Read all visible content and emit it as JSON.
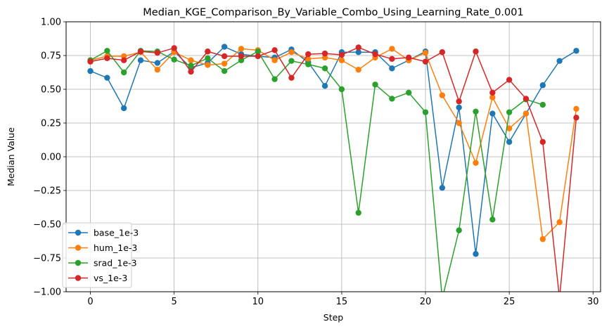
{
  "chart_data": {
    "type": "line",
    "title": "Median_KGE_Comparison_By_Variable_Combo_Using_Learning_Rate_0.001",
    "xlabel": "Step",
    "ylabel": "Median Value",
    "xlim": [
      -1.45,
      30.45
    ],
    "ylim": [
      -1.0,
      1.0
    ],
    "xticks": [
      0,
      5,
      10,
      15,
      20,
      25,
      30
    ],
    "yticks": [
      -1.0,
      -0.75,
      -0.5,
      -0.25,
      0.0,
      0.25,
      0.5,
      0.75,
      1.0
    ],
    "xtick_labels": [
      "0",
      "5",
      "10",
      "15",
      "20",
      "25",
      "30"
    ],
    "ytick_labels": [
      "−1.00",
      "−0.75",
      "−0.50",
      "−0.25",
      "0.00",
      "0.25",
      "0.50",
      "0.75",
      "1.00"
    ],
    "grid": true,
    "legend_position": "lower-left",
    "series": [
      {
        "name": "base_1e-3",
        "color": "#1f77b4",
        "x": [
          0,
          1,
          2,
          3,
          4,
          5,
          6,
          7,
          8,
          9,
          10,
          11,
          12,
          13,
          14,
          15,
          16,
          17,
          18,
          19,
          20,
          21,
          22,
          23,
          24,
          25,
          26,
          27,
          28,
          29
        ],
        "values": [
          0.635,
          0.585,
          0.36,
          0.715,
          0.695,
          0.78,
          0.66,
          0.695,
          0.815,
          0.76,
          0.745,
          0.735,
          0.795,
          0.7,
          0.525,
          0.775,
          0.775,
          0.775,
          0.655,
          0.715,
          0.78,
          -0.23,
          0.365,
          -0.72,
          0.32,
          0.11,
          0.32,
          0.53,
          0.71,
          0.785
        ]
      },
      {
        "name": "hum_1e-3",
        "color": "#ff7f0e",
        "x": [
          0,
          1,
          2,
          3,
          4,
          5,
          6,
          7,
          8,
          9,
          10,
          11,
          12,
          13,
          14,
          15,
          16,
          17,
          18,
          19,
          20,
          21,
          22,
          23,
          24,
          25,
          26,
          27,
          28,
          29
        ],
        "values": [
          0.715,
          0.745,
          0.745,
          0.775,
          0.645,
          0.775,
          0.715,
          0.68,
          0.69,
          0.8,
          0.79,
          0.715,
          0.775,
          0.725,
          0.735,
          0.715,
          0.645,
          0.735,
          0.8,
          0.715,
          0.77,
          0.455,
          0.25,
          -0.045,
          0.44,
          0.21,
          0.32,
          -0.61,
          -0.485,
          0.355
        ]
      },
      {
        "name": "srad_1e-3",
        "color": "#2ca02c",
        "x": [
          0,
          1,
          2,
          3,
          4,
          5,
          6,
          7,
          8,
          9,
          10,
          11,
          12,
          13,
          14,
          15,
          16,
          17,
          18,
          19,
          20,
          21,
          22,
          23,
          24,
          25,
          26,
          27
        ],
        "values": [
          0.715,
          0.785,
          0.625,
          0.785,
          0.78,
          0.72,
          0.675,
          0.73,
          0.635,
          0.715,
          0.78,
          0.575,
          0.71,
          0.685,
          0.655,
          0.5,
          -0.415,
          0.535,
          0.43,
          0.475,
          0.33,
          -1.05,
          -0.545,
          0.335,
          -0.465,
          0.33,
          0.425,
          0.385
        ]
      },
      {
        "name": "vs_1e-3",
        "color": "#d62728",
        "x": [
          0,
          1,
          2,
          3,
          4,
          5,
          6,
          7,
          8,
          9,
          10,
          11,
          12,
          13,
          14,
          15,
          16,
          17,
          18,
          19,
          20,
          21,
          22,
          23,
          24,
          25,
          26,
          27,
          28,
          29
        ],
        "values": [
          0.705,
          0.73,
          0.715,
          0.78,
          0.77,
          0.805,
          0.63,
          0.78,
          0.745,
          0.745,
          0.745,
          0.79,
          0.585,
          0.76,
          0.765,
          0.755,
          0.81,
          0.76,
          0.725,
          0.735,
          0.705,
          0.775,
          0.41,
          0.78,
          0.475,
          0.57,
          0.43,
          0.11,
          -1.05,
          0.29
        ]
      }
    ]
  }
}
